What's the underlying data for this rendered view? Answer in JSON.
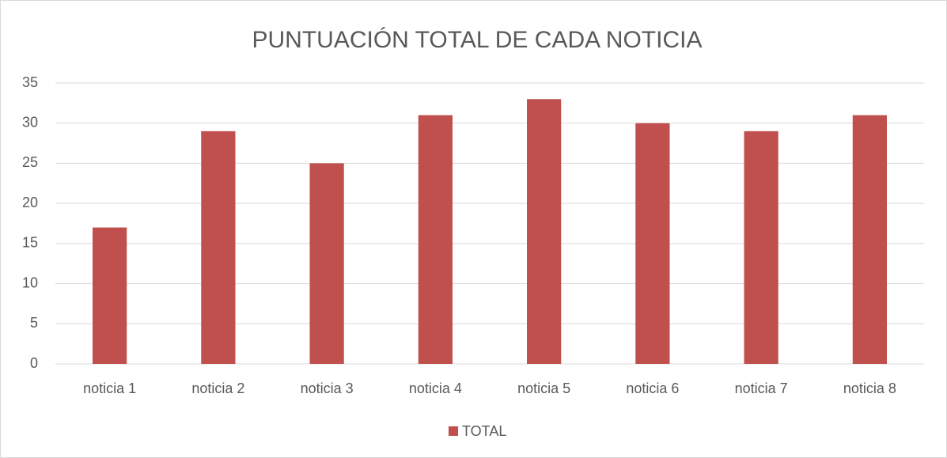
{
  "chart_data": {
    "type": "bar",
    "title": "PUNTUACIÓN TOTAL DE CADA NOTICIA",
    "categories": [
      "noticia 1",
      "noticia 2",
      "noticia 3",
      "noticia 4",
      "noticia 5",
      "noticia 6",
      "noticia 7",
      "noticia 8"
    ],
    "series": [
      {
        "name": "TOTAL",
        "color": "#c0504d",
        "values": [
          17,
          29,
          25,
          31,
          33,
          30,
          29,
          31
        ]
      }
    ],
    "ylim": [
      0,
      35
    ],
    "yticks": [
      0,
      5,
      10,
      15,
      20,
      25,
      30,
      35
    ],
    "grid": true,
    "legend": "bottom"
  }
}
